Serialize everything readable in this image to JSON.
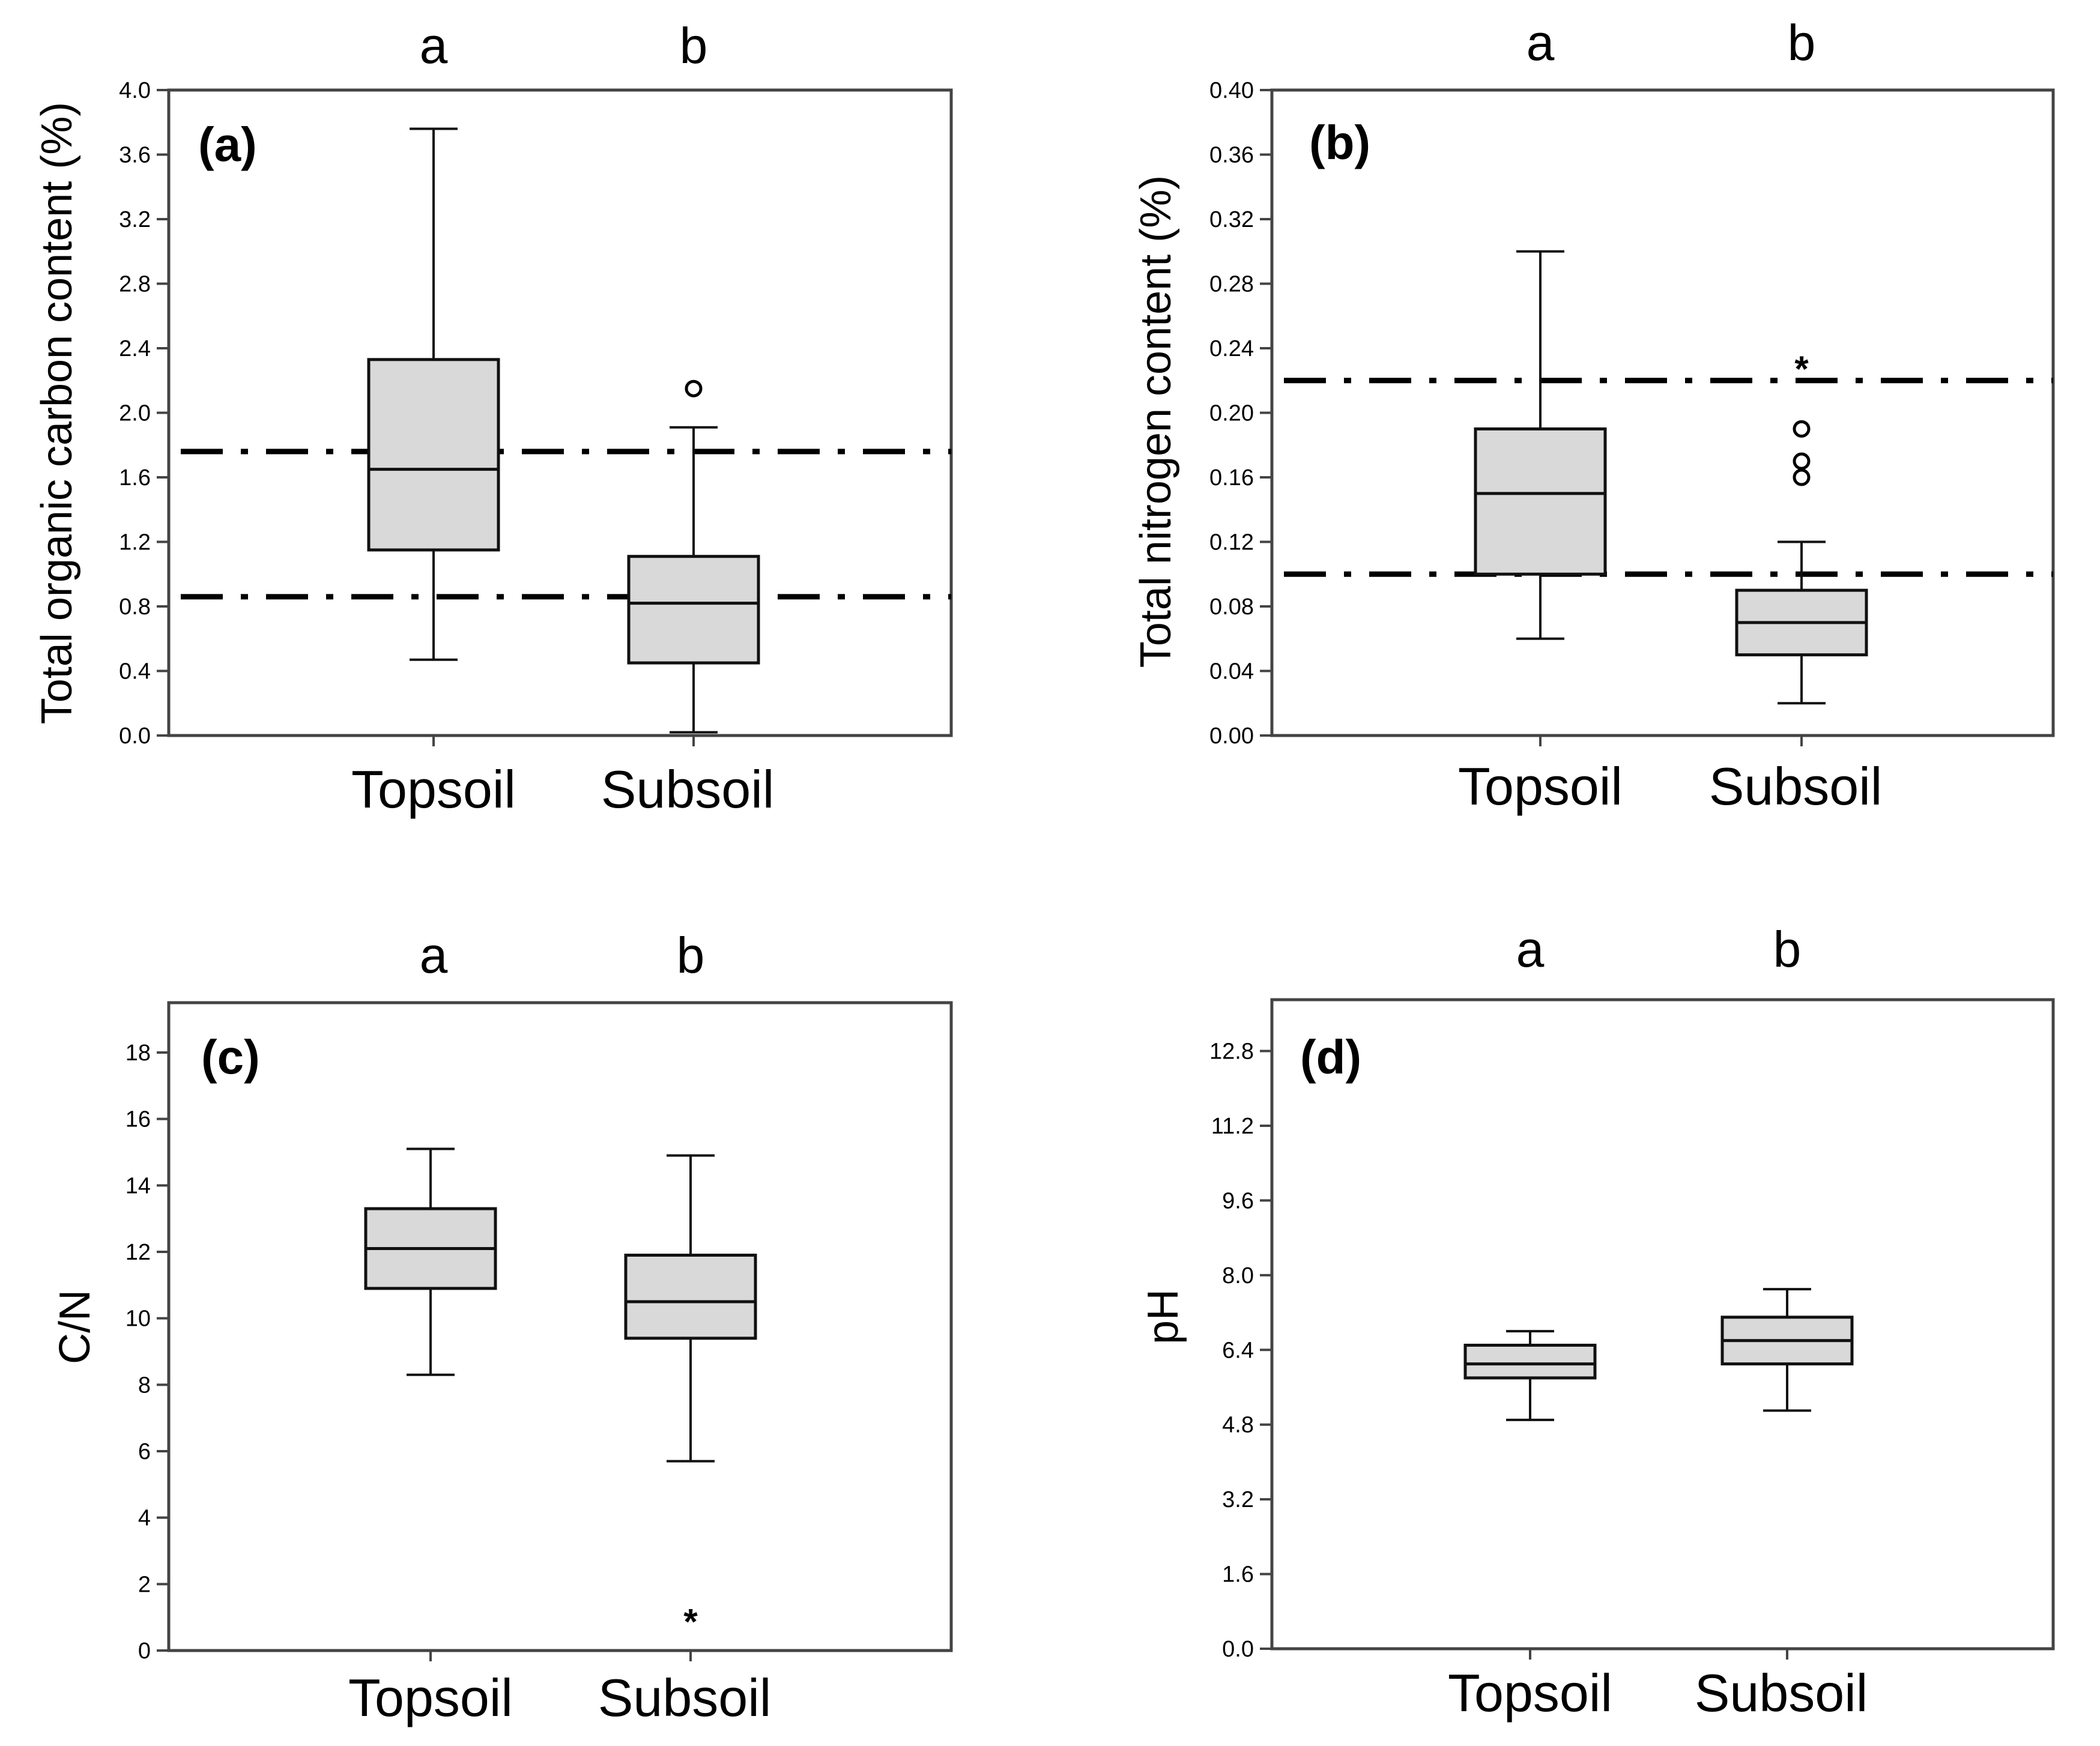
{
  "chart_data": [
    {
      "type": "box",
      "panel_label": "(a)",
      "ylabel": "Total organic carbon content (%)",
      "ylim": [
        0,
        4.0
      ],
      "yticks": [
        "0.0",
        "0.4",
        "0.8",
        "1.2",
        "1.6",
        "2.0",
        "2.4",
        "2.8",
        "3.2",
        "3.6",
        "4.0"
      ],
      "categories": [
        "Topsoil",
        "Subsoil"
      ],
      "group_letters": [
        "a",
        "b"
      ],
      "boxes": [
        {
          "min": 0.47,
          "q1": 1.15,
          "median": 1.65,
          "q3": 2.33,
          "max": 3.76,
          "outliers": []
        },
        {
          "min": 0.02,
          "q1": 0.45,
          "median": 0.82,
          "q3": 1.11,
          "max": 1.91,
          "outliers": [
            {
              "value": 2.15,
              "marker": "circle"
            }
          ]
        }
      ],
      "reference_lines": [
        1.76,
        0.86
      ]
    },
    {
      "type": "box",
      "panel_label": "(b)",
      "ylabel": "Total nitrogen content (%)",
      "ylim": [
        0,
        0.4
      ],
      "yticks": [
        "0.00",
        "0.04",
        "0.08",
        "0.12",
        "0.16",
        "0.20",
        "0.24",
        "0.28",
        "0.32",
        "0.36",
        "0.40"
      ],
      "categories": [
        "Topsoil",
        "Subsoil"
      ],
      "group_letters": [
        "a",
        "b"
      ],
      "boxes": [
        {
          "min": 0.06,
          "q1": 0.1,
          "median": 0.15,
          "q3": 0.19,
          "max": 0.3,
          "outliers": []
        },
        {
          "min": 0.02,
          "q1": 0.05,
          "median": 0.07,
          "q3": 0.09,
          "max": 0.12,
          "outliers": [
            {
              "value": 0.16,
              "marker": "circle"
            },
            {
              "value": 0.17,
              "marker": "circle"
            },
            {
              "value": 0.19,
              "marker": "circle"
            },
            {
              "value": 0.23,
              "marker": "star"
            }
          ]
        }
      ],
      "reference_lines": [
        0.22,
        0.1
      ]
    },
    {
      "type": "box",
      "panel_label": "(c)",
      "ylabel": "C/N",
      "ylim": [
        0,
        19.5
      ],
      "yticks": [
        "0",
        "2",
        "4",
        "6",
        "8",
        "10",
        "12",
        "14",
        "16",
        "18"
      ],
      "categories": [
        "Topsoil",
        "Subsoil"
      ],
      "group_letters": [
        "a",
        "b"
      ],
      "boxes": [
        {
          "min": 8.3,
          "q1": 10.9,
          "median": 12.1,
          "q3": 13.3,
          "max": 15.1,
          "outliers": []
        },
        {
          "min": 5.7,
          "q1": 9.4,
          "median": 10.5,
          "q3": 11.9,
          "max": 14.9,
          "outliers": [
            {
              "value": 1.0,
              "marker": "star"
            }
          ]
        }
      ],
      "reference_lines": []
    },
    {
      "type": "box",
      "panel_label": "(d)",
      "ylabel": "pH",
      "ylim": [
        0,
        13.9
      ],
      "yticks": [
        "0.0",
        "1.6",
        "3.2",
        "4.8",
        "6.4",
        "8.0",
        "9.6",
        "11.2",
        "12.8"
      ],
      "categories": [
        "Topsoil",
        "Subsoil"
      ],
      "group_letters": [
        "a",
        "b"
      ],
      "boxes": [
        {
          "min": 4.9,
          "q1": 5.8,
          "median": 6.1,
          "q3": 6.5,
          "max": 6.8,
          "outliers": []
        },
        {
          "min": 5.1,
          "q1": 6.1,
          "median": 6.6,
          "q3": 7.1,
          "max": 7.7,
          "outliers": []
        }
      ],
      "reference_lines": []
    }
  ]
}
